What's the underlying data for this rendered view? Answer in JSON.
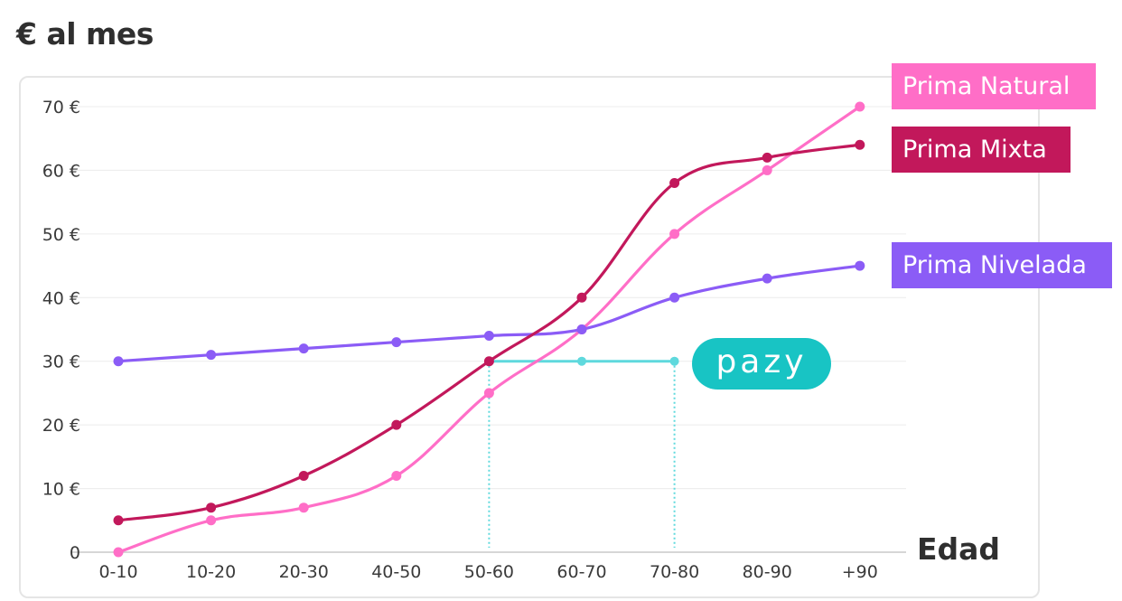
{
  "title": "€ al mes",
  "brand": "pazy",
  "chart_data": {
    "type": "line",
    "title": "€ al mes",
    "xlabel": "Edad",
    "ylabel": "",
    "categories": [
      "0-10",
      "10-20",
      "20-30",
      "40-50",
      "50-60",
      "60-70",
      "70-80",
      "80-90",
      "+90"
    ],
    "ylim": [
      0,
      70
    ],
    "yticks": [
      {
        "value": 0,
        "label": "0"
      },
      {
        "value": 10,
        "label": "10 €"
      },
      {
        "value": 20,
        "label": "20 €"
      },
      {
        "value": 30,
        "label": "30 €"
      },
      {
        "value": 40,
        "label": "40 €"
      },
      {
        "value": 50,
        "label": "50 €"
      },
      {
        "value": 60,
        "label": "60 €"
      },
      {
        "value": 70,
        "label": "70 €"
      }
    ],
    "grid": true,
    "legend": "right",
    "series": [
      {
        "name": "Prima Natural",
        "color": "#ff6ec7",
        "values": [
          0,
          5,
          7,
          12,
          25,
          35,
          50,
          60,
          70
        ]
      },
      {
        "name": "Prima Mixta",
        "color": "#c2185b",
        "values": [
          5,
          7,
          12,
          20,
          30,
          40,
          58,
          62,
          64
        ]
      },
      {
        "name": "Prima Nivelada",
        "color": "#8b5cf6",
        "values": [
          30,
          31,
          32,
          33,
          34,
          35,
          40,
          43,
          45
        ]
      }
    ],
    "highlight": {
      "label": "pazy",
      "color": "#5fd9dd",
      "value": 30,
      "categories": [
        "50-60",
        "60-70",
        "70-80"
      ]
    }
  }
}
